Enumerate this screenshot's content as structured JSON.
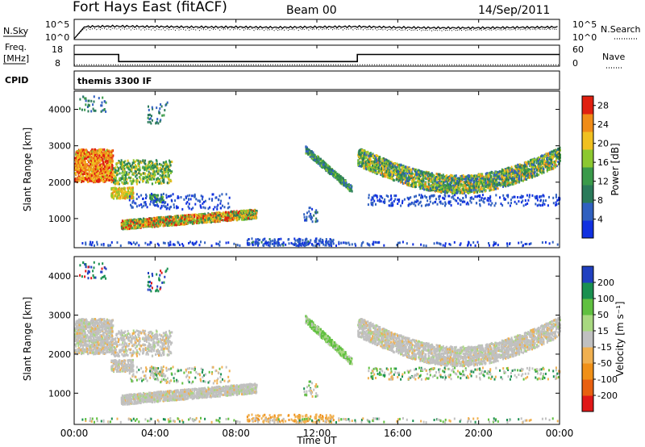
{
  "header": {
    "station": "Fort Hays East (fitACF)",
    "beam": "Beam 00",
    "date": "14/Sep/2011"
  },
  "chart_data": [
    {
      "type": "line",
      "name": "noise-panel",
      "left_label": "N.Sky",
      "right_label": "N.Search",
      "y_ticks": [
        "10^5",
        "10^0"
      ],
      "ylim_log10": [
        0,
        5
      ],
      "series": [
        {
          "name": "N.Sky",
          "style": "solid",
          "x": [
            0,
            0.5,
            2,
            4,
            6,
            8,
            10,
            12,
            14,
            16,
            18,
            20,
            22,
            24
          ],
          "y_log10": [
            0.2,
            3.2,
            3.3,
            3.2,
            3.1,
            3.1,
            3.0,
            3.1,
            3.2,
            3.0,
            2.9,
            2.9,
            3.0,
            3.1
          ]
        },
        {
          "name": "N.Search",
          "style": "dotted",
          "x": [
            0,
            0.5,
            2,
            4,
            6,
            8,
            10,
            12,
            14,
            16,
            18,
            20,
            22,
            24
          ],
          "y_log10": [
            0.2,
            2.6,
            2.7,
            2.5,
            2.5,
            2.6,
            2.4,
            2.6,
            2.6,
            2.4,
            2.3,
            2.4,
            2.5,
            2.6
          ]
        }
      ]
    },
    {
      "type": "line",
      "name": "frequency-panel",
      "left_label": "Freq.",
      "left_unit": "[MHz]",
      "right_label": "Nave",
      "y_ticks_left": [
        "18",
        "8"
      ],
      "y_ticks_right": [
        "60",
        "0"
      ],
      "series": [
        {
          "name": "Freq.",
          "style": "solid",
          "x": [
            0,
            2.2,
            2.2,
            14.0,
            14.0,
            24
          ],
          "y": [
            14.6,
            14.6,
            10.6,
            10.6,
            14.6,
            14.6
          ]
        },
        {
          "name": "Nave",
          "style": "dotted",
          "x": [
            0,
            24
          ],
          "y": [
            8.8,
            8.8
          ]
        }
      ]
    },
    {
      "type": "table",
      "name": "cpid-panel",
      "label": "CPID",
      "entries": [
        "themis 3300 IF"
      ]
    },
    {
      "type": "heatmap",
      "name": "power-panel",
      "xlabel": "Time UT",
      "ylabel": "Slant Range [km]",
      "x_ticks": [
        "00:00",
        "04:00",
        "08:00",
        "12:00",
        "16:00",
        "20:00",
        "00:00"
      ],
      "xlim": [
        0,
        24
      ],
      "y_ticks": [
        1000,
        2000,
        3000,
        4000
      ],
      "ylim": [
        200,
        4500
      ],
      "colorbar_label": "Power [dB]",
      "colorbar_ticks": [
        4,
        8,
        12,
        16,
        20,
        24,
        28
      ],
      "colorbar_range": [
        0,
        30
      ],
      "colors": [
        "#1030e0",
        "#3060c0",
        "#2a7a5a",
        "#3a9a4a",
        "#8cc830",
        "#f0c020",
        "#f08c18",
        "#e02010"
      ]
    },
    {
      "type": "heatmap",
      "name": "velocity-panel",
      "xlabel": "Time UT",
      "ylabel": "Slant Range [km]",
      "x_ticks": [
        "00:00",
        "04:00",
        "08:00",
        "12:00",
        "16:00",
        "20:00",
        "00:00"
      ],
      "xlim": [
        0,
        24
      ],
      "y_ticks": [
        1000,
        2000,
        3000,
        4000
      ],
      "ylim": [
        200,
        4500
      ],
      "colorbar_label": "Velocity [m s⁻¹]",
      "colorbar_ticks": [
        200,
        100,
        50,
        15,
        -15,
        -50,
        -100,
        -200
      ],
      "colors": [
        "#2040c0",
        "#1a9050",
        "#60c040",
        "#a8d880",
        "#c0c0c0",
        "#f0b050",
        "#f09018",
        "#e86010",
        "#e01818"
      ]
    }
  ]
}
